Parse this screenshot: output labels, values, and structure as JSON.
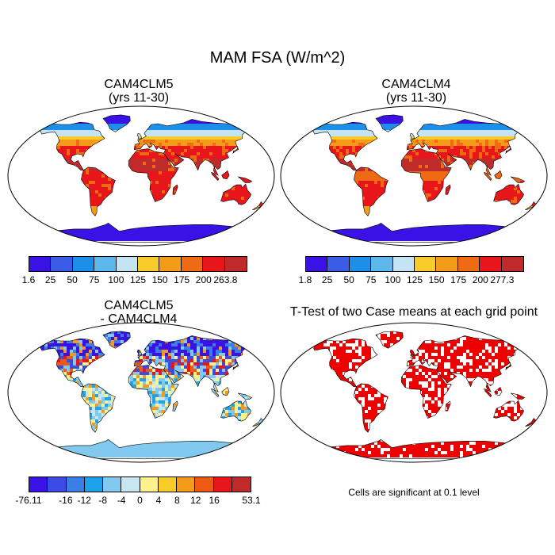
{
  "title": "MAM FSA (W/m^2)",
  "chart_data": [
    {
      "type": "heatmap",
      "panel": "top-left",
      "title": "CAM4CLM5",
      "subtitle": "(yrs 11-30)",
      "colorbar": {
        "labels": [
          "1.6",
          "25",
          "50",
          "75",
          "100",
          "125",
          "150",
          "175",
          "200",
          "263.8"
        ],
        "colors": [
          "#3a12e6",
          "#3b5ce6",
          "#1e8fe8",
          "#5cb8ea",
          "#c4e4f3",
          "#f7cc2a",
          "#f49b1a",
          "#ee6a13",
          "#e8161b",
          "#c12a2a"
        ]
      }
    },
    {
      "type": "heatmap",
      "panel": "top-right",
      "title": "CAM4CLM4",
      "subtitle": "(yrs 11-30)",
      "colorbar": {
        "labels": [
          "1.8",
          "25",
          "50",
          "75",
          "100",
          "125",
          "150",
          "175",
          "200",
          "277.3"
        ],
        "colors": [
          "#3a12e6",
          "#3b5ce6",
          "#1e8fe8",
          "#5cb8ea",
          "#c4e4f3",
          "#f7cc2a",
          "#f49b1a",
          "#ee6a13",
          "#e8161b",
          "#c12a2a"
        ]
      }
    },
    {
      "type": "heatmap",
      "panel": "bottom-left",
      "title": "CAM4CLM5",
      "subtitle": "- CAM4CLM4",
      "colorbar": {
        "labels": [
          "-76.11",
          "-16",
          "-12",
          "-8",
          "-4",
          "0",
          "4",
          "8",
          "12",
          "16",
          "53.1"
        ],
        "colors": [
          "#3a12e6",
          "#3b4ce6",
          "#3b7ee6",
          "#1ea2ea",
          "#82c9ef",
          "#c6e6f2",
          "#fff28a",
          "#f7cc2a",
          "#f49b1a",
          "#ee5a13",
          "#e8161b",
          "#c12a2a"
        ]
      }
    },
    {
      "type": "heatmap",
      "panel": "bottom-right",
      "title": "T-Test of two Case means at each grid point",
      "note": "Cells are significant at 0.1 level",
      "colors": {
        "significant": "#ee0000"
      }
    }
  ]
}
